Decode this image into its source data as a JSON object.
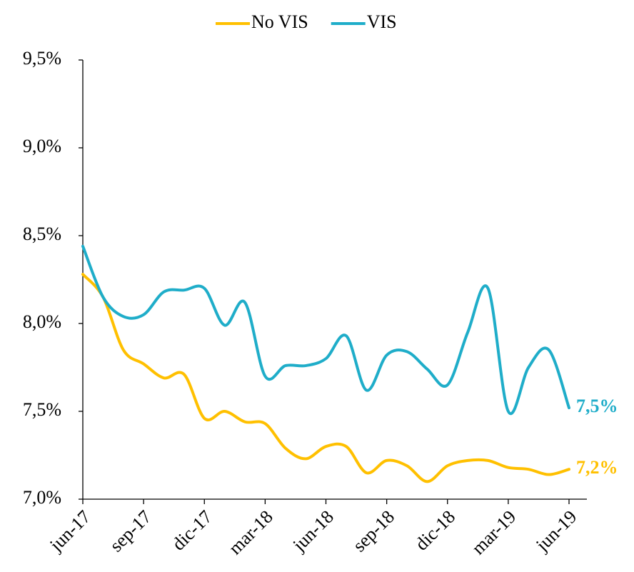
{
  "chart_data": {
    "type": "line",
    "categories": [
      "jun-17",
      null,
      null,
      "sep-17",
      null,
      null,
      "dic-17",
      null,
      null,
      "mar-18",
      null,
      null,
      "jun-18",
      null,
      null,
      "sep-18",
      null,
      null,
      "dic-18",
      null,
      null,
      "mar-19",
      null,
      null,
      "jun-19"
    ],
    "series": [
      {
        "name": "No VIS",
        "color": "#ffc000",
        "values": [
          8.28,
          8.15,
          7.85,
          7.77,
          7.69,
          7.71,
          7.46,
          7.5,
          7.44,
          7.43,
          7.29,
          7.23,
          7.3,
          7.3,
          7.15,
          7.22,
          7.19,
          7.1,
          7.19,
          7.22,
          7.22,
          7.18,
          7.17,
          7.14,
          7.17
        ],
        "value_labels": [
          null,
          null,
          null,
          null,
          null,
          null,
          null,
          null,
          null,
          null,
          null,
          null,
          null,
          null,
          null,
          null,
          null,
          null,
          null,
          null,
          null,
          null,
          null,
          null,
          "7,2%"
        ]
      },
      {
        "name": "VIS",
        "color": "#1fadc9",
        "values": [
          8.44,
          8.15,
          8.04,
          8.05,
          8.18,
          8.19,
          8.2,
          7.99,
          8.12,
          7.7,
          7.76,
          7.76,
          7.8,
          7.93,
          7.62,
          7.82,
          7.84,
          7.74,
          7.65,
          7.95,
          8.2,
          7.5,
          7.75,
          7.85,
          7.52
        ],
        "value_labels": [
          null,
          null,
          null,
          null,
          null,
          null,
          null,
          null,
          null,
          null,
          null,
          null,
          null,
          null,
          null,
          null,
          null,
          null,
          null,
          null,
          null,
          null,
          null,
          null,
          "7,5%"
        ]
      }
    ],
    "ylim": [
      7.0,
      9.5
    ],
    "yticks": [
      {
        "value": 7.0,
        "label": "7,0%"
      },
      {
        "value": 7.5,
        "label": "7,5%"
      },
      {
        "value": 8.0,
        "label": "8,0%"
      },
      {
        "value": 8.5,
        "label": "8,5%"
      },
      {
        "value": 9.0,
        "label": "9,0%"
      },
      {
        "value": 9.5,
        "label": "9,5%"
      }
    ],
    "legend": "top"
  }
}
